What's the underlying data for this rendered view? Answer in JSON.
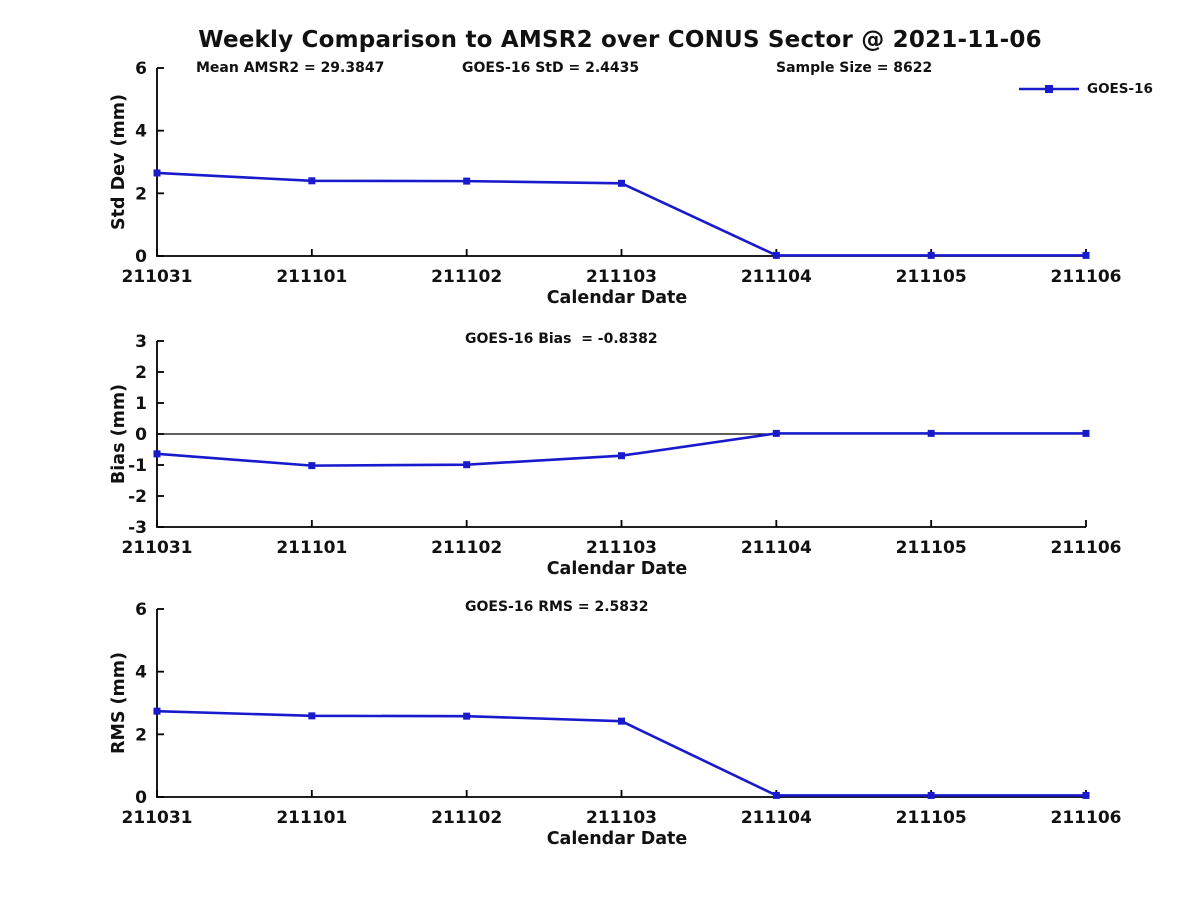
{
  "title": "Weekly Comparison to AMSR2 over CONUS Sector @ 2021-11-06",
  "header_annotations": {
    "mean_amsr2": "Mean AMSR2 = 29.3847",
    "goes16_std": "GOES-16 StD = 2.4435",
    "sample_size": "Sample Size = 8622"
  },
  "stats": {
    "mean_amsr2": 29.3847,
    "goes16_std": 2.4435,
    "sample_size": 8622,
    "goes16_bias": -0.8382,
    "goes16_rms": 2.5832
  },
  "legend": {
    "label": "GOES-16",
    "position": "top-right",
    "marker": "filled-square-on-line"
  },
  "colors": {
    "series": "#1a1acd",
    "axis": "#000000",
    "text": "#111111",
    "zero_line": "#000000",
    "background": "#ffffff"
  },
  "chart_data": [
    {
      "type": "line",
      "categories": [
        "211031",
        "211101",
        "211102",
        "211103",
        "211104",
        "211105",
        "211106"
      ],
      "series": [
        {
          "name": "GOES-16",
          "values": [
            2.65,
            2.4,
            2.39,
            2.32,
            0.02,
            0.02,
            0.02
          ]
        }
      ],
      "annotation": "",
      "xlabel": "Calendar Date",
      "ylabel": "Std Dev (mm)",
      "ylim": [
        0,
        6
      ],
      "yticks": [
        0,
        2,
        4,
        6
      ],
      "zero_line": false,
      "grid": false
    },
    {
      "type": "line",
      "categories": [
        "211031",
        "211101",
        "211102",
        "211103",
        "211104",
        "211105",
        "211106"
      ],
      "series": [
        {
          "name": "GOES-16",
          "values": [
            -0.64,
            -1.02,
            -0.99,
            -0.7,
            0.02,
            0.02,
            0.02
          ]
        }
      ],
      "annotation": "GOES-16 Bias  = -0.8382",
      "xlabel": "Calendar Date",
      "ylabel": "Bias (mm)",
      "ylim": [
        -3,
        3
      ],
      "yticks": [
        -3,
        -2,
        -1,
        0,
        1,
        2,
        3
      ],
      "zero_line": true,
      "grid": false
    },
    {
      "type": "line",
      "categories": [
        "211031",
        "211101",
        "211102",
        "211103",
        "211104",
        "211105",
        "211106"
      ],
      "series": [
        {
          "name": "GOES-16",
          "values": [
            2.74,
            2.59,
            2.58,
            2.42,
            0.05,
            0.05,
            0.05
          ]
        }
      ],
      "annotation": "GOES-16 RMS = 2.5832",
      "xlabel": "Calendar Date",
      "ylabel": "RMS (mm)",
      "ylim": [
        0,
        6
      ],
      "yticks": [
        0,
        2,
        4,
        6
      ],
      "zero_line": false,
      "grid": false
    }
  ]
}
